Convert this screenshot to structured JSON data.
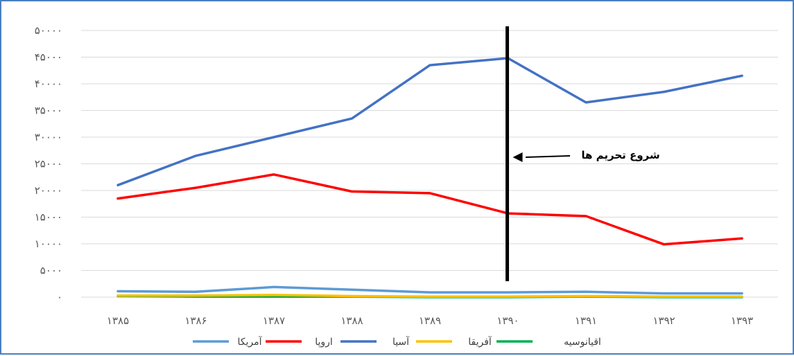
{
  "chart_data": {
    "type": "line",
    "categories": [
      "۱۳۸۵",
      "۱۳۸۶",
      "۱۳۸۷",
      "۱۳۸۸",
      "۱۳۸۹",
      "۱۳۹۰",
      "۱۳۹۱",
      "۱۳۹۲",
      "۱۳۹۳"
    ],
    "y_ticks": [
      "۰",
      "۵۰۰۰",
      "۱۰۰۰۰",
      "۱۵۰۰۰",
      "۲۰۰۰۰",
      "۲۵۰۰۰",
      "۳۰۰۰۰",
      "۳۵۰۰۰",
      "۴۰۰۰۰",
      "۴۵۰۰۰",
      "۵۰۰۰۰"
    ],
    "y_tick_values": [
      0,
      5000,
      10000,
      15000,
      20000,
      25000,
      30000,
      35000,
      40000,
      45000,
      50000
    ],
    "ylim": [
      0,
      50000
    ],
    "grid": true,
    "legend_position": "bottom",
    "series": [
      {
        "name": "آمریکا",
        "color": "#5b9bd5",
        "values": [
          1100,
          1000,
          1900,
          1400,
          900,
          900,
          1000,
          700,
          700
        ]
      },
      {
        "name": "اروپا",
        "color": "#ff0000",
        "values": [
          18500,
          20500,
          23000,
          19800,
          19500,
          15700,
          15200,
          9900,
          11000
        ]
      },
      {
        "name": "آسیا",
        "color": "#4472c4",
        "values": [
          21000,
          26500,
          30000,
          33500,
          43500,
          44800,
          36500,
          38500,
          41500
        ]
      },
      {
        "name": "آفریقا",
        "color": "#ffc000",
        "values": [
          300,
          300,
          400,
          200,
          100,
          100,
          200,
          100,
          100
        ]
      },
      {
        "name": "اقیانوسیه",
        "color": "#00b050",
        "values": [
          200,
          100,
          100,
          100,
          0,
          0,
          100,
          0,
          0
        ]
      }
    ],
    "annotation": {
      "text": "شروع تحریم ها",
      "at_category": "۱۳۹۰"
    }
  }
}
